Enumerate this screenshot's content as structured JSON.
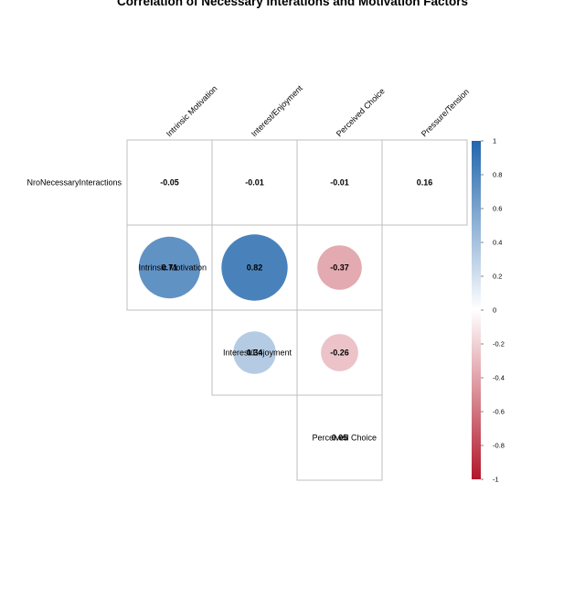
{
  "chart_data": {
    "type": "heatmap",
    "style": "upper-triangle correlation matrix, circle size and color proportional to correlation",
    "title": "Correlation of Necessary Interations and Motivation Factors",
    "columns": [
      "Intrinsic Motivation",
      "Interest/Enjoyment",
      "Perceived Choice",
      "Pressure/Tension"
    ],
    "rows": [
      "NroNecessaryInteractions",
      "Intrinsic Motivation",
      "Interest/Enjoyment",
      "Perceived Choice"
    ],
    "cells": [
      {
        "row": 0,
        "col": 0,
        "value": -0.05,
        "label": "-0.05"
      },
      {
        "row": 0,
        "col": 1,
        "value": -0.01,
        "label": "-0.01"
      },
      {
        "row": 0,
        "col": 2,
        "value": -0.01,
        "label": "-0.01"
      },
      {
        "row": 0,
        "col": 3,
        "value": 0.16,
        "label": "0.16"
      },
      {
        "row": 1,
        "col": 0,
        "value": 0.71,
        "label": "0.71"
      },
      {
        "row": 1,
        "col": 1,
        "value": 0.82,
        "label": "0.82"
      },
      {
        "row": 1,
        "col": 2,
        "value": -0.37,
        "label": "-0.37"
      },
      {
        "row": 2,
        "col": 1,
        "value": 0.34,
        "label": "0.34"
      },
      {
        "row": 2,
        "col": 2,
        "value": -0.26,
        "label": "-0.26"
      },
      {
        "row": 3,
        "col": 2,
        "value": 0.05,
        "label": "0.05"
      }
    ],
    "colorbar": {
      "range": [
        -1,
        1
      ],
      "ticks": [
        "1",
        "0.8",
        "0.6",
        "0.4",
        "0.2",
        "0",
        "-0.2",
        "-0.4",
        "-0.6",
        "-0.8",
        "-1"
      ],
      "colors": {
        "negative": "#b2182b",
        "neutral": "#ffffff",
        "positive": "#2166ac"
      }
    },
    "grid_color": "#bfbfbf"
  }
}
